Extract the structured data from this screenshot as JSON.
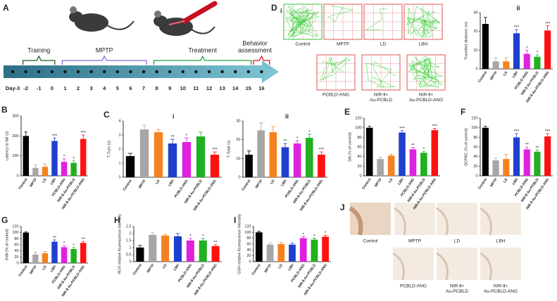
{
  "timeline": {
    "panel": "A",
    "phases": [
      [
        "Training"
      ],
      [
        "MPTP"
      ],
      [
        "Treatment"
      ],
      [
        "Behavior",
        "assessment"
      ]
    ],
    "days": [
      "Day-3",
      "-2",
      "-1",
      "0",
      "1",
      "2",
      "3",
      "4",
      "5",
      "6",
      "7",
      "8",
      "9",
      "10",
      "11",
      "12",
      "13",
      "14",
      "15",
      "16"
    ]
  },
  "tracking": {
    "panel": "D",
    "subpanel": "i",
    "labels": [
      [
        "Control"
      ],
      [
        "MPTP"
      ],
      [
        "LD"
      ],
      [
        "LBH"
      ],
      [
        "PCBLD-ANG"
      ],
      [
        "NIR-Ⅱ+",
        "Au-PCBLD"
      ],
      [
        "NIR-Ⅱ+",
        "Au-PCBLD-ANG"
      ]
    ]
  },
  "histology": {
    "panel": "J",
    "labels": [
      [
        "Control"
      ],
      [
        "MPTP"
      ],
      [
        "LD"
      ],
      [
        "LBH"
      ],
      [
        "PCBLD-ANG"
      ],
      [
        "NIR-Ⅱ+",
        "Au-PCBLD"
      ],
      [
        "NIR-Ⅱ+",
        "Au-PCBLD-ANG"
      ]
    ]
  },
  "chart_data": [
    {
      "type": "bar",
      "subpanel": "ii",
      "ylabel": "Travelled distance (m)",
      "categories": [
        "Control",
        "MPTP",
        "LD",
        "LBH",
        "PCBLD-ANG",
        "NIR-Ⅱ-Au-PCBLD",
        "NIR-Ⅱ-Au-PCBLD-ANG"
      ],
      "colors": [
        "#000000",
        "#a6a6a6",
        "#f58220",
        "#1f3fcf",
        "#e020e0",
        "#20b020",
        "#ff1010"
      ],
      "values": [
        24,
        4,
        4,
        19,
        8,
        6.5,
        20.5
      ],
      "errors": [
        3.5,
        2,
        2,
        2,
        2,
        1,
        2.5
      ],
      "stars": [
        null,
        null,
        null,
        "***",
        "*",
        "*",
        "***"
      ],
      "ylim": [
        0,
        30
      ],
      "yticks": [
        0,
        10,
        20,
        30
      ]
    },
    {
      "type": "bar",
      "panel": "B",
      "ylabel": "Latency to fall (s)",
      "categories": [
        "Control",
        "MPTP",
        "LD",
        "LBH",
        "PCBLD-ANG",
        "NIR-Ⅱ-Au-PCBLD",
        "NIR-Ⅱ-Au-PCBLD-ANG"
      ],
      "colors": [
        "#000000",
        "#a6a6a6",
        "#f58220",
        "#1f3fcf",
        "#e020e0",
        "#20b020",
        "#ff1010"
      ],
      "values": [
        200,
        40,
        45,
        175,
        70,
        65,
        185
      ],
      "errors": [
        20,
        15,
        15,
        15,
        15,
        10,
        20
      ],
      "stars": [
        null,
        null,
        null,
        "***",
        "*",
        "*",
        "***"
      ],
      "ylim": [
        0,
        300
      ],
      "yticks": [
        0,
        100,
        200,
        300
      ]
    },
    {
      "type": "bar",
      "panel": "C",
      "subpanel": "i",
      "ylabel": "T-Turn (s)",
      "categories": [
        "Control",
        "MPTP",
        "LD",
        "LBH",
        "PCBLD-ANG",
        "NIR-Ⅱ-Au-PCBLD",
        "NIR-Ⅱ-Au-PCBLD-ANG"
      ],
      "colors": [
        "#000000",
        "#a6a6a6",
        "#f58220",
        "#1f3fcf",
        "#e020e0",
        "#20b020",
        "#ff1010"
      ],
      "values": [
        1.5,
        3.4,
        3.2,
        2.4,
        2.5,
        2.9,
        1.6
      ],
      "errors": [
        0.2,
        0.3,
        0.2,
        0.3,
        0.3,
        0.3,
        0.2
      ],
      "stars": [
        null,
        null,
        null,
        "**",
        "*",
        null,
        "***"
      ],
      "ylim": [
        0,
        4
      ],
      "yticks": [
        0,
        1,
        2,
        3,
        4
      ]
    },
    {
      "type": "bar",
      "subpanel": "ii",
      "ylabel": "T-Total (s)",
      "categories": [
        "Control",
        "MPTP",
        "LD",
        "LBH",
        "PCBLD-ANG",
        "NIR-Ⅱ-Au-PCBLD",
        "NIR-Ⅱ-Au-PCBLD-ANG"
      ],
      "colors": [
        "#000000",
        "#a6a6a6",
        "#f58220",
        "#1f3fcf",
        "#e020e0",
        "#20b020",
        "#ff1010"
      ],
      "values": [
        12,
        25,
        24,
        16,
        18,
        21,
        12
      ],
      "errors": [
        2,
        4,
        3,
        2,
        1.5,
        2,
        1.5
      ],
      "stars": [
        null,
        null,
        null,
        "**",
        "*",
        "*",
        "***"
      ],
      "ylim": [
        0,
        30
      ],
      "yticks": [
        0,
        10,
        20,
        30
      ]
    },
    {
      "type": "bar",
      "panel": "E",
      "ylabel": "DA (% of control)",
      "categories": [
        "Control",
        "MPTP",
        "LD",
        "LBH",
        "PCBLD-ANG",
        "NIR-Ⅱ-Au-PCBLD",
        "NIR-Ⅱ-Au-PCBLD-ANG"
      ],
      "colors": [
        "#000000",
        "#a6a6a6",
        "#f58220",
        "#1f3fcf",
        "#e020e0",
        "#20b020",
        "#ff1010"
      ],
      "values": [
        100,
        35,
        42,
        90,
        55,
        48,
        95
      ],
      "errors": [
        3,
        4,
        3,
        4,
        4,
        3,
        4
      ],
      "stars": [
        null,
        null,
        null,
        "***",
        "**",
        "*",
        "***"
      ],
      "ylim": [
        0,
        120
      ],
      "yticks": [
        0,
        20,
        40,
        60,
        80,
        100,
        120
      ]
    },
    {
      "type": "bar",
      "panel": "F",
      "ylabel": "DOPAC (% of control)",
      "categories": [
        "Control",
        "MPTP",
        "LD",
        "LBH",
        "PCBLD-ANG",
        "NIR-Ⅱ-Au-PCBLD",
        "NIR-Ⅱ-Au-PCBLD-ANG"
      ],
      "colors": [
        "#000000",
        "#a6a6a6",
        "#f58220",
        "#1f3fcf",
        "#e020e0",
        "#20b020",
        "#ff1010"
      ],
      "values": [
        100,
        32,
        35,
        80,
        55,
        50,
        82
      ],
      "errors": [
        3,
        5,
        10,
        8,
        5,
        4,
        6
      ],
      "stars": [
        null,
        null,
        null,
        "***",
        "**",
        "**",
        "***"
      ],
      "ylim": [
        0,
        120
      ],
      "yticks": [
        0,
        20,
        40,
        60,
        80,
        100,
        120
      ]
    },
    {
      "type": "bar",
      "panel": "G",
      "ylabel": "HVA (% of control)",
      "categories": [
        "Control",
        "MPTP",
        "LD",
        "LBH",
        "PCBLD-ANG",
        "NIR-Ⅱ-Au-PCBLD",
        "NIR-Ⅱ-Au-PCBLD-ANG"
      ],
      "colors": [
        "#000000",
        "#a6a6a6",
        "#f58220",
        "#1f3fcf",
        "#e020e0",
        "#20b020",
        "#ff1010"
      ],
      "values": [
        100,
        28,
        32,
        70,
        52,
        46,
        66
      ],
      "errors": [
        2,
        8,
        6,
        6,
        6,
        5,
        5
      ],
      "stars": [
        null,
        null,
        null,
        "**",
        "*",
        "*",
        "**"
      ],
      "ylim": [
        0,
        120
      ],
      "yticks": [
        0,
        20,
        40,
        60,
        80,
        100,
        120
      ]
    },
    {
      "type": "bar",
      "panel": "H",
      "ylabel": "ROS relative fluorescence intensity",
      "categories": [
        "Control",
        "MPTP",
        "LD",
        "LBH",
        "PCBLD-ANG",
        "NIR-Ⅱ-Au-PCBLD",
        "NIR-Ⅱ-Au-PCBLD-ANG"
      ],
      "colors": [
        "#000000",
        "#a6a6a6",
        "#f58220",
        "#1f3fcf",
        "#e020e0",
        "#20b020",
        "#ff1010"
      ],
      "values": [
        1.0,
        1.9,
        1.85,
        1.8,
        1.5,
        1.5,
        1.1
      ],
      "errors": [
        0.15,
        0.15,
        0.1,
        0.2,
        0.15,
        0.15,
        0.1
      ],
      "stars": [
        null,
        null,
        null,
        null,
        "*",
        "*",
        "**"
      ],
      "ylim": [
        0,
        2.5
      ],
      "yticks": [
        0,
        0.5,
        1,
        1.5,
        2,
        2.5
      ]
    },
    {
      "type": "bar",
      "panel": "I",
      "ylabel": "GSH relative fluorescence intensity",
      "categories": [
        "Control",
        "MPTP",
        "LD",
        "LBH",
        "PCBLD-ANG",
        "NIR-Ⅱ-Au-PCBLD",
        "NIR-Ⅱ-Au-PCBLD-ANG"
      ],
      "colors": [
        "#000000",
        "#a6a6a6",
        "#f58220",
        "#1f3fcf",
        "#e020e0",
        "#20b020",
        "#ff1010"
      ],
      "values": [
        100,
        58,
        60,
        58,
        80,
        75,
        85
      ],
      "errors": [
        3,
        5,
        5,
        5,
        5,
        5,
        5
      ],
      "stars": [
        null,
        null,
        null,
        null,
        "*",
        "*",
        "*"
      ],
      "ylim": [
        0,
        120
      ],
      "yticks": [
        0,
        20,
        40,
        60,
        80,
        100,
        120
      ]
    }
  ]
}
